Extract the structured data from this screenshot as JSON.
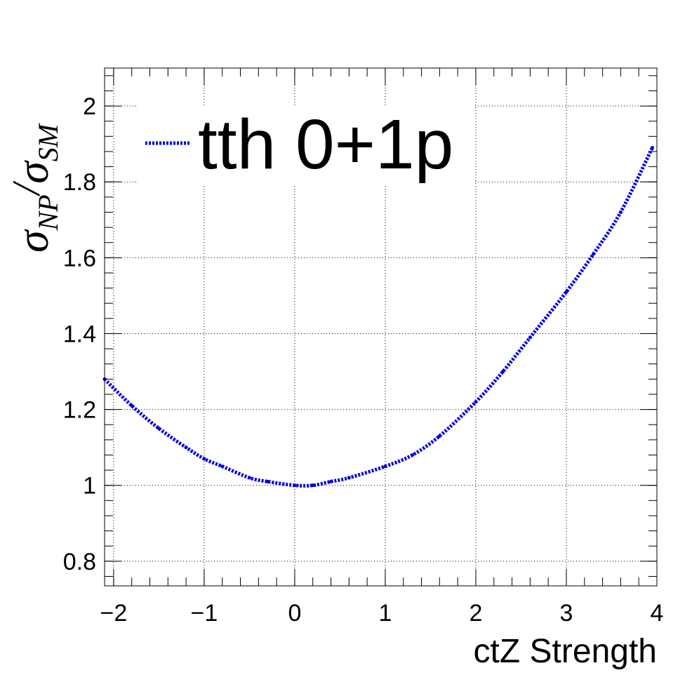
{
  "chart_data": {
    "type": "line",
    "title": "",
    "xlabel": "ctZ Strength",
    "ylabel": {
      "symbol": "σ",
      "num_sub": "NP",
      "slash": "/",
      "den_sub": "SM"
    },
    "xlim": [
      -2.1,
      4.0
    ],
    "ylim": [
      0.735,
      2.1
    ],
    "x_ticks": [
      -2,
      -1,
      0,
      1,
      2,
      3,
      4
    ],
    "x_tick_labels": [
      "−2",
      "−1",
      "0",
      "1",
      "2",
      "3",
      "4"
    ],
    "y_ticks": [
      0.8,
      1.0,
      1.2,
      1.4,
      1.6,
      1.8,
      2.0
    ],
    "y_tick_labels": [
      "0.8",
      "1",
      "1.2",
      "1.4",
      "1.6",
      "1.8",
      "2"
    ],
    "grid": true,
    "legend_position": "top-left",
    "series": [
      {
        "name": "tth 0+1p",
        "color": "#0000dd",
        "style": "dotted",
        "x": [
          -2.1,
          -1.8,
          -1.5,
          -1.2,
          -1.0,
          -0.8,
          -0.5,
          -0.3,
          0.0,
          0.2,
          0.4,
          0.6,
          1.0,
          1.3,
          1.6,
          2.0,
          2.3,
          2.6,
          3.0,
          3.3,
          3.6,
          3.95
        ],
        "y": [
          1.28,
          1.21,
          1.15,
          1.1,
          1.07,
          1.05,
          1.02,
          1.01,
          1.0,
          1.0,
          1.01,
          1.02,
          1.05,
          1.08,
          1.13,
          1.22,
          1.3,
          1.39,
          1.51,
          1.61,
          1.72,
          1.89
        ]
      }
    ]
  }
}
